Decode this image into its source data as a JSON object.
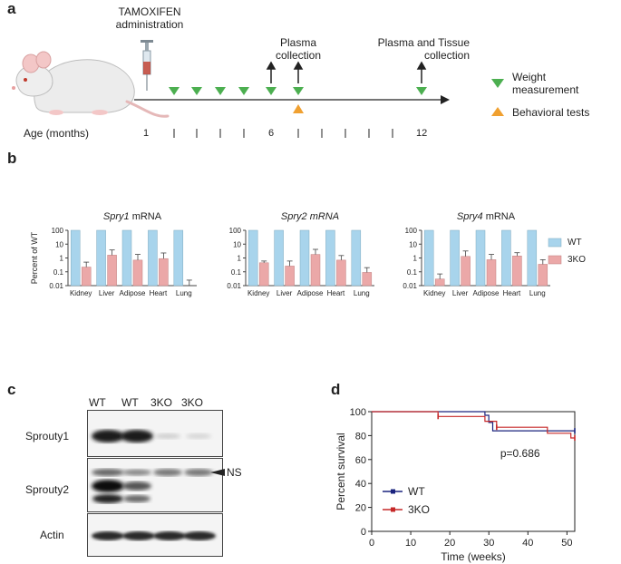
{
  "panels": {
    "a": "a",
    "b": "b",
    "c": "c",
    "d": "d"
  },
  "timeline": {
    "tamoxifen": "TAMOXIFEN",
    "administration": "administration",
    "plasma_line1": "Plasma",
    "plasma_line2": "collection",
    "plasma_tissue_line1": "Plasma and Tissue",
    "plasma_tissue_line2": "collection",
    "age_label": "Age (months)",
    "tick_labels": {
      "m1": "1",
      "m6": "6",
      "m12": "12"
    },
    "legend_weight_line1": "Weight",
    "legend_weight_line2": "measurement",
    "legend_behavior": "Behavioral tests",
    "colors": {
      "weight": "#4caf50",
      "behavior": "#f0a030",
      "arrow": "#222222"
    }
  },
  "chart_data": [
    {
      "type": "bar",
      "title": "Spry1 mRNA",
      "title_italic": "Spry1",
      "title_rest": " mRNA",
      "ylabel": "Percent of WT",
      "yscale": "log",
      "ylim": [
        0.01,
        100
      ],
      "yticks": [
        "100",
        "10",
        "1",
        "0.1",
        "0.01"
      ],
      "categories": [
        "Kidney",
        "Liver",
        "Adipose",
        "Heart",
        "Lung"
      ],
      "series": [
        {
          "name": "WT",
          "color": "#a8d4ec",
          "values": [
            100,
            100,
            100,
            100,
            100
          ],
          "err": [
            0,
            0,
            0,
            0,
            0
          ]
        },
        {
          "name": "3KO",
          "color": "#eba8a8",
          "values": [
            0.22,
            1.6,
            0.7,
            0.9,
            0.007
          ],
          "err": [
            0.5,
            3.8,
            1.8,
            2.3,
            0.025
          ]
        }
      ]
    },
    {
      "type": "bar",
      "title": "Spry2 mRNA",
      "title_italic": "Spry2 mRNA",
      "title_rest": "",
      "ylabel": "",
      "yscale": "log",
      "ylim": [
        0.01,
        100
      ],
      "yticks": [
        "100",
        "10",
        "1",
        "0.1",
        "0.01"
      ],
      "categories": [
        "Kidney",
        "Liver",
        "Adipose",
        "Heart",
        "Lung"
      ],
      "series": [
        {
          "name": "WT",
          "color": "#a8d4ec",
          "values": [
            100,
            100,
            100,
            100,
            100
          ],
          "err": [
            0,
            0,
            0,
            0,
            0
          ]
        },
        {
          "name": "3KO",
          "color": "#eba8a8",
          "values": [
            0.45,
            0.26,
            1.8,
            0.7,
            0.09
          ],
          "err": [
            0.6,
            0.6,
            4.2,
            1.5,
            0.2
          ]
        }
      ]
    },
    {
      "type": "bar",
      "title": "Spry4 mRNA",
      "title_italic": "Spry4",
      "title_rest": " mRNA",
      "ylabel": "",
      "yscale": "log",
      "ylim": [
        0.01,
        100
      ],
      "yticks": [
        "100",
        "10",
        "1",
        "0.1",
        "0.01"
      ],
      "categories": [
        "Kidney",
        "Liver",
        "Adipose",
        "Heart",
        "Lung"
      ],
      "series": [
        {
          "name": "WT",
          "color": "#a8d4ec",
          "values": [
            100,
            100,
            100,
            100,
            100
          ],
          "err": [
            0,
            0,
            0,
            0,
            0
          ]
        },
        {
          "name": "3KO",
          "color": "#eba8a8",
          "values": [
            0.03,
            1.3,
            0.75,
            1.4,
            0.35
          ],
          "err": [
            0.07,
            3.2,
            1.8,
            2.4,
            0.75
          ]
        }
      ]
    },
    {
      "type": "line",
      "subtype": "kaplan-meier",
      "xlabel": "Time (weeks)",
      "ylabel": "Percent survival",
      "xlim": [
        0,
        52
      ],
      "ylim": [
        0,
        100
      ],
      "xticks": [
        "0",
        "10",
        "20",
        "30",
        "40",
        "50"
      ],
      "yticks": [
        "0",
        "20",
        "40",
        "60",
        "80",
        "100"
      ],
      "annotation": "p=0.686",
      "series": [
        {
          "name": "WT",
          "color": "#1a237e",
          "steps": [
            [
              0,
              100
            ],
            [
              29,
              100
            ],
            [
              29,
              97
            ],
            [
              30,
              97
            ],
            [
              30,
              91
            ],
            [
              31,
              91
            ],
            [
              31,
              84
            ],
            [
              52,
              84
            ]
          ],
          "censor": [
            [
              52,
              84
            ]
          ]
        },
        {
          "name": "3KO",
          "color": "#c62828",
          "steps": [
            [
              0,
              100
            ],
            [
              17,
              100
            ],
            [
              17,
              96
            ],
            [
              29,
              96
            ],
            [
              29,
              92
            ],
            [
              32,
              92
            ],
            [
              32,
              87
            ],
            [
              45,
              87
            ],
            [
              45,
              82
            ],
            [
              51,
              82
            ],
            [
              51,
              78
            ],
            [
              52,
              78
            ]
          ],
          "censor": [
            [
              17,
              96
            ],
            [
              32,
              87
            ],
            [
              52,
              78
            ]
          ]
        }
      ]
    }
  ],
  "legend_b": {
    "wt": "WT",
    "ko": "3KO",
    "wt_color": "#a8d4ec",
    "ko_color": "#eba8a8"
  },
  "blot": {
    "lanes": [
      "WT",
      "WT",
      "3KO",
      "3KO"
    ],
    "rows": [
      "Sprouty1",
      "Sprouty2",
      "Actin"
    ],
    "ns_label": "NS"
  }
}
